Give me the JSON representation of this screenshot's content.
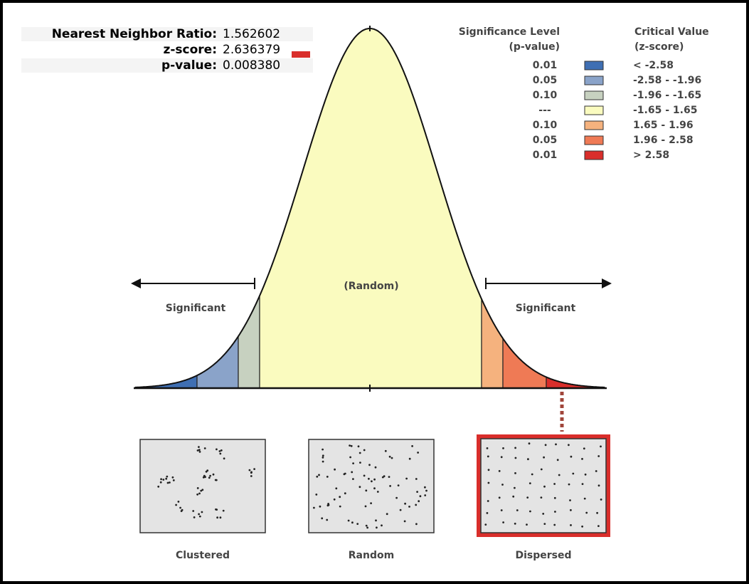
{
  "stats": [
    {
      "label": "Nearest Neighbor Ratio:",
      "value": "1.562602"
    },
    {
      "label": "z-score:",
      "value": "2.636379"
    },
    {
      "label": "p-value:",
      "value": "0.008380"
    }
  ],
  "legend": {
    "p_header": [
      "Significance Level",
      "(p-value)"
    ],
    "z_header": [
      "Critical Value",
      "(z-score)"
    ],
    "rows": [
      {
        "p": "0.01",
        "z": "< -2.58",
        "color": "#3f6fb3"
      },
      {
        "p": "0.05",
        "z": "-2.58 - -1.96",
        "color": "#8aa3c9"
      },
      {
        "p": "0.10",
        "z": "-1.96 - -1.65",
        "color": "#c7d1c0"
      },
      {
        "p": "---",
        "z": "-1.65 - 1.65",
        "color": "#fafbbf"
      },
      {
        "p": "0.10",
        "z": "1.65 - 1.96",
        "color": "#f5b27e"
      },
      {
        "p": "0.05",
        "z": "1.96 - 2.58",
        "color": "#ef7a55"
      },
      {
        "p": "0.01",
        "z": "> 2.58",
        "color": "#d92e2b"
      }
    ]
  },
  "curve_labels": {
    "center": "(Random)",
    "left": "Significant",
    "right": "Significant"
  },
  "patterns": [
    "Clustered",
    "Random",
    "Dispersed"
  ]
}
